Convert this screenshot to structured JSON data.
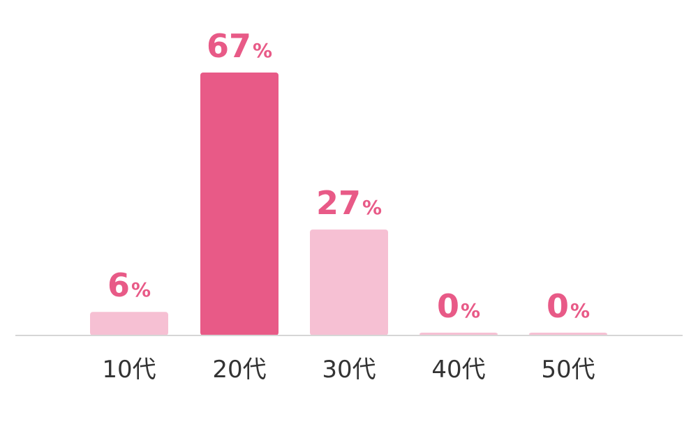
{
  "chart_data": {
    "type": "bar",
    "categories": [
      "10代",
      "20代",
      "30代",
      "40代",
      "50代"
    ],
    "values": [
      6,
      67,
      27,
      0,
      0
    ],
    "value_suffix": "%",
    "ylim": [
      0,
      67
    ],
    "title": "",
    "xlabel": "",
    "ylabel": "",
    "grid": false,
    "highlight_index": 1
  },
  "colors": {
    "highlight": "#e85a87",
    "normal": "#f6c0d3",
    "label": "#e85a87",
    "axis": "#d6d6d6",
    "category_text": "#333333"
  }
}
